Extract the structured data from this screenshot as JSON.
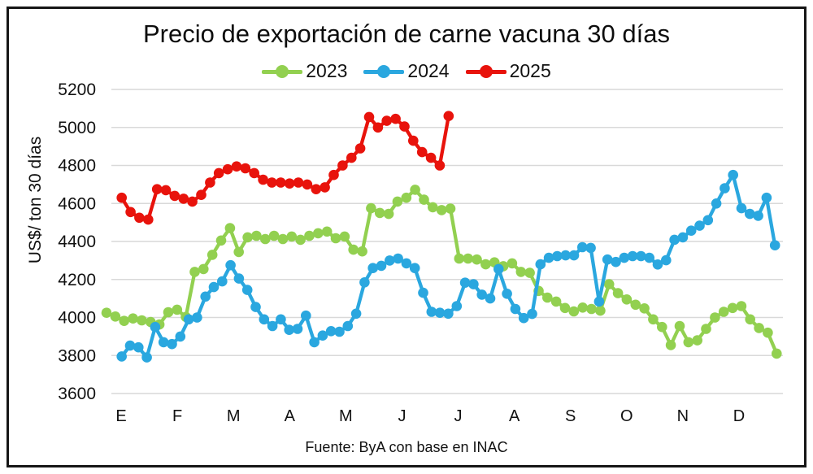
{
  "chart_data": {
    "type": "line",
    "title": "Precio de exportación de carne vacuna 30 días",
    "y_axis_label": "US$/ ton 30 días",
    "source_note": "Fuente: ByA con base en INAC",
    "x_tick_labels": [
      "E",
      "F",
      "M",
      "A",
      "M",
      "J",
      "J",
      "A",
      "S",
      "O",
      "N",
      "D"
    ],
    "y_ticks": [
      3600,
      3800,
      4000,
      4200,
      4400,
      4600,
      4800,
      5000,
      5200
    ],
    "ylim": [
      3600,
      5200
    ],
    "grid": "horizontal-only",
    "legend_position": "top-center",
    "gridline_color": "#d9d9d9",
    "series": [
      {
        "name": "2023",
        "color": "#92d050",
        "x_start_month": -0.26,
        "x_end_month": 11.67,
        "values": [
          4025,
          4005,
          3982,
          3995,
          3985,
          3976,
          3963,
          4028,
          4041,
          4003,
          4240,
          4255,
          4330,
          4405,
          4470,
          4345,
          4422,
          4430,
          4413,
          4430,
          4413,
          4426,
          4409,
          4430,
          4443,
          4452,
          4417,
          4426,
          4357,
          4348,
          4575,
          4550,
          4545,
          4610,
          4630,
          4672,
          4620,
          4580,
          4565,
          4573,
          4310,
          4310,
          4305,
          4280,
          4290,
          4270,
          4285,
          4240,
          4235,
          4140,
          4105,
          4084,
          4050,
          4032,
          4052,
          4045,
          4036,
          4175,
          4128,
          4095,
          4067,
          4048,
          3990,
          3950,
          3855,
          3955,
          3870,
          3880,
          3940,
          4000,
          4030,
          4050,
          4060,
          3990,
          3945,
          3920,
          3810
        ]
      },
      {
        "name": "2024",
        "color": "#2aa7df",
        "x_start_month": 0.01,
        "x_end_month": 11.64,
        "values": [
          3795,
          3852,
          3843,
          3790,
          3950,
          3870,
          3860,
          3900,
          3990,
          4000,
          4110,
          4160,
          4190,
          4275,
          4205,
          4145,
          4055,
          3990,
          3955,
          3990,
          3935,
          3940,
          4010,
          3870,
          3905,
          3928,
          3925,
          3955,
          4020,
          4185,
          4260,
          4272,
          4300,
          4310,
          4285,
          4260,
          4130,
          4030,
          4025,
          4020,
          4060,
          4183,
          4175,
          4120,
          4100,
          4255,
          4125,
          4045,
          3997,
          4019,
          4280,
          4314,
          4323,
          4327,
          4327,
          4370,
          4366,
          4084,
          4305,
          4292,
          4314,
          4323,
          4323,
          4314,
          4279,
          4301,
          4409,
          4422,
          4457,
          4483,
          4512,
          4600,
          4680,
          4750,
          4575,
          4545,
          4535,
          4630,
          4380
        ]
      },
      {
        "name": "2025",
        "color": "#e8130c",
        "x_start_month": 0.01,
        "x_end_month": 5.83,
        "values": [
          4630,
          4555,
          4525,
          4515,
          4675,
          4670,
          4640,
          4625,
          4610,
          4645,
          4710,
          4760,
          4780,
          4795,
          4785,
          4760,
          4725,
          4710,
          4710,
          4705,
          4710,
          4700,
          4675,
          4685,
          4750,
          4800,
          4840,
          4890,
          5055,
          5000,
          5035,
          5045,
          5005,
          4930,
          4870,
          4840,
          4800,
          5060
        ]
      }
    ]
  }
}
